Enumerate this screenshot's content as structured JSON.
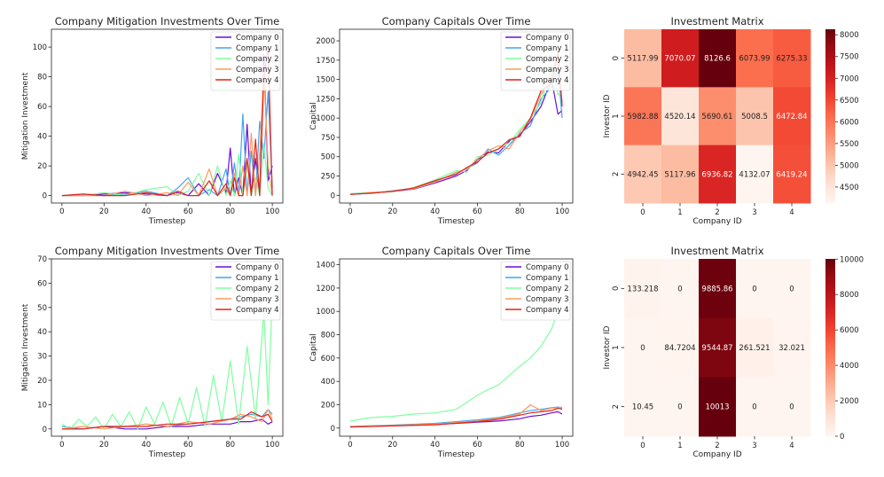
{
  "chart_data": [
    {
      "type": "line",
      "title": "Company Mitigation Investments Over Time",
      "xlabel": "Timestep",
      "ylabel": "Mitigation Investment",
      "xlim": [
        -5,
        105
      ],
      "ylim": [
        -5,
        112
      ],
      "xticks": [
        0,
        20,
        40,
        60,
        80,
        100
      ],
      "yticks": [
        0,
        20,
        40,
        60,
        80,
        100
      ],
      "legend_position": "top-right",
      "kind": "spiky",
      "series": [
        {
          "name": "Company 0",
          "color": "#6a0fd8",
          "x": [
            0,
            10,
            20,
            30,
            40,
            50,
            55,
            60,
            65,
            70,
            74,
            78,
            80,
            82,
            84,
            86,
            88,
            90,
            92,
            94,
            96,
            98,
            100
          ],
          "y": [
            0,
            0,
            1,
            2,
            1,
            0,
            2,
            0,
            8,
            0,
            15,
            2,
            32,
            0,
            12,
            0,
            48,
            0,
            25,
            0,
            95,
            10,
            20
          ]
        },
        {
          "name": "Company 1",
          "color": "#3fa7f0",
          "x": [
            0,
            10,
            20,
            30,
            40,
            50,
            55,
            60,
            65,
            70,
            74,
            78,
            80,
            82,
            84,
            86,
            88,
            90,
            92,
            94,
            96,
            98,
            100
          ],
          "y": [
            0,
            1,
            0,
            1,
            3,
            0,
            5,
            12,
            0,
            4,
            0,
            18,
            0,
            22,
            0,
            55,
            0,
            30,
            0,
            50,
            25,
            70,
            5
          ]
        },
        {
          "name": "Company 2",
          "color": "#7fffa0",
          "x": [
            0,
            10,
            20,
            30,
            40,
            50,
            55,
            60,
            65,
            70,
            74,
            78,
            80,
            82,
            84,
            86,
            88,
            90,
            92,
            94,
            96,
            98,
            100
          ],
          "y": [
            0,
            0,
            2,
            0,
            4,
            6,
            0,
            3,
            15,
            0,
            20,
            0,
            10,
            0,
            28,
            0,
            20,
            0,
            12,
            0,
            35,
            5,
            0
          ]
        },
        {
          "name": "Company 3",
          "color": "#ff9a5a",
          "x": [
            0,
            10,
            20,
            30,
            40,
            50,
            55,
            60,
            65,
            70,
            74,
            78,
            80,
            82,
            84,
            86,
            88,
            90,
            92,
            94,
            96,
            98,
            100
          ],
          "y": [
            0,
            0,
            0,
            3,
            0,
            2,
            0,
            9,
            0,
            18,
            0,
            5,
            0,
            15,
            0,
            20,
            0,
            42,
            0,
            28,
            85,
            20,
            0
          ]
        },
        {
          "name": "Company 4",
          "color": "#e3221c",
          "x": [
            0,
            10,
            20,
            30,
            40,
            50,
            55,
            60,
            65,
            70,
            74,
            78,
            80,
            82,
            84,
            86,
            88,
            90,
            92,
            94,
            96,
            98,
            100
          ],
          "y": [
            0,
            1,
            0,
            0,
            2,
            0,
            3,
            0,
            0,
            10,
            0,
            8,
            0,
            12,
            0,
            0,
            25,
            0,
            38,
            0,
            80,
            100,
            0
          ]
        }
      ]
    },
    {
      "type": "line",
      "title": "Company Capitals Over Time",
      "xlabel": "Timestep",
      "ylabel": "Capital",
      "xlim": [
        -5,
        105
      ],
      "ylim": [
        -100,
        2150
      ],
      "xticks": [
        0,
        20,
        40,
        60,
        80,
        100
      ],
      "yticks": [
        0,
        250,
        500,
        750,
        1000,
        1250,
        1500,
        1750,
        2000
      ],
      "legend_position": "top-right",
      "kind": "smooth",
      "series": [
        {
          "name": "Company 0",
          "color": "#6a0fd8",
          "x": [
            0,
            10,
            20,
            30,
            40,
            50,
            55,
            60,
            65,
            70,
            75,
            80,
            85,
            90,
            95,
            98,
            100
          ],
          "y": [
            10,
            30,
            50,
            80,
            160,
            250,
            320,
            460,
            560,
            550,
            700,
            780,
            950,
            1150,
            1500,
            1050,
            1100
          ]
        },
        {
          "name": "Company 1",
          "color": "#3fa7f0",
          "x": [
            0,
            10,
            20,
            30,
            40,
            50,
            55,
            60,
            65,
            70,
            75,
            80,
            85,
            90,
            95,
            98,
            100
          ],
          "y": [
            15,
            25,
            60,
            90,
            180,
            280,
            350,
            420,
            600,
            520,
            650,
            800,
            900,
            1250,
            1400,
            1650,
            1000
          ]
        },
        {
          "name": "Company 2",
          "color": "#7fffa0",
          "x": [
            0,
            10,
            20,
            30,
            40,
            50,
            55,
            60,
            65,
            70,
            75,
            80,
            85,
            90,
            95,
            98,
            100
          ],
          "y": [
            20,
            40,
            45,
            100,
            200,
            320,
            300,
            500,
            520,
            600,
            680,
            850,
            1000,
            1200,
            1700,
            1300,
            1350
          ]
        },
        {
          "name": "Company 3",
          "color": "#ff9a5a",
          "x": [
            0,
            10,
            20,
            30,
            40,
            50,
            55,
            60,
            65,
            70,
            75,
            80,
            85,
            90,
            95,
            98,
            100
          ],
          "y": [
            10,
            35,
            55,
            85,
            170,
            300,
            340,
            470,
            580,
            640,
            600,
            820,
            980,
            1300,
            1550,
            1750,
            1200
          ]
        },
        {
          "name": "Company 4",
          "color": "#e3221c",
          "x": [
            0,
            10,
            20,
            30,
            40,
            50,
            55,
            60,
            65,
            70,
            75,
            80,
            85,
            90,
            95,
            98,
            100
          ],
          "y": [
            12,
            28,
            50,
            95,
            190,
            270,
            360,
            430,
            550,
            600,
            720,
            760,
            1000,
            1350,
            1450,
            1850,
            1150
          ]
        }
      ]
    },
    {
      "type": "heatmap",
      "title": "Investment Matrix",
      "xlabel": "Company ID",
      "ylabel": "Investor ID",
      "x_categories": [
        "0",
        "1",
        "2",
        "3",
        "4"
      ],
      "y_categories": [
        "0",
        "1",
        "2"
      ],
      "values": [
        [
          5117.99,
          7070.07,
          8126.6,
          6073.99,
          6275.33
        ],
        [
          5982.88,
          4520.14,
          5690.61,
          5008.5,
          6472.84
        ],
        [
          4942.45,
          5117.96,
          6936.82,
          4132.07,
          6419.24
        ]
      ],
      "labels": [
        [
          "5117.99",
          "7070.07",
          "8126.6",
          "6073.99",
          "6275.33"
        ],
        [
          "5982.88",
          "4520.14",
          "5690.61",
          "5008.5",
          "6472.84"
        ],
        [
          "4942.45",
          "5117.96",
          "6936.82",
          "4132.07",
          "6419.24"
        ]
      ],
      "colorbar_range": [
        4132.07,
        8126.6
      ],
      "colorbar_ticks": [
        4500,
        5000,
        5500,
        6000,
        6500,
        7000,
        7500,
        8000
      ],
      "colormap": "Reds"
    },
    {
      "type": "line",
      "title": "Company Mitigation Investments Over Time",
      "xlabel": "Timestep",
      "ylabel": "Mitigation Investment",
      "xlim": [
        -5,
        105
      ],
      "ylim": [
        -3,
        70
      ],
      "xticks": [
        0,
        20,
        40,
        60,
        80,
        100
      ],
      "yticks": [
        0,
        10,
        20,
        30,
        40,
        50,
        60,
        70
      ],
      "legend_position": "top-right",
      "kind": "spiky",
      "series": [
        {
          "name": "Company 0",
          "color": "#6a0fd8",
          "x": [
            0,
            10,
            20,
            30,
            40,
            50,
            60,
            70,
            80,
            85,
            90,
            95,
            98,
            100
          ],
          "y": [
            0,
            0,
            1,
            0,
            0,
            1,
            1,
            2,
            2,
            3,
            3,
            4,
            2,
            3
          ]
        },
        {
          "name": "Company 1",
          "color": "#3fa7f0",
          "x": [
            0,
            10,
            20,
            30,
            40,
            50,
            60,
            70,
            80,
            85,
            90,
            95,
            98,
            100
          ],
          "y": [
            1,
            0,
            1,
            1,
            2,
            1,
            2,
            3,
            4,
            5,
            6,
            5,
            8,
            6
          ]
        },
        {
          "name": "Company 2",
          "color": "#7fffa0",
          "x": [
            0,
            4,
            8,
            12,
            16,
            20,
            24,
            28,
            32,
            36,
            40,
            44,
            48,
            52,
            56,
            60,
            64,
            68,
            72,
            76,
            80,
            84,
            88,
            92,
            96,
            98,
            100
          ],
          "y": [
            2,
            0,
            4,
            1,
            5,
            0,
            6,
            1,
            7,
            0,
            9,
            2,
            11,
            1,
            13,
            2,
            17,
            1,
            22,
            3,
            28,
            2,
            34,
            4,
            48,
            10,
            55
          ]
        },
        {
          "name": "Company 3",
          "color": "#ff9a5a",
          "x": [
            0,
            10,
            20,
            30,
            40,
            50,
            60,
            70,
            80,
            85,
            90,
            95,
            98,
            100
          ],
          "y": [
            0,
            1,
            0,
            1,
            2,
            1,
            3,
            2,
            4,
            6,
            5,
            3,
            8,
            4
          ]
        },
        {
          "name": "Company 4",
          "color": "#e3221c",
          "x": [
            0,
            10,
            20,
            30,
            40,
            50,
            60,
            70,
            80,
            85,
            90,
            95,
            98,
            100
          ],
          "y": [
            0,
            0,
            1,
            1,
            1,
            2,
            2,
            3,
            4,
            4,
            7,
            5,
            6,
            3
          ]
        }
      ]
    },
    {
      "type": "line",
      "title": "Company Capitals Over Time",
      "xlabel": "Timestep",
      "ylabel": "Capital",
      "xlim": [
        -5,
        105
      ],
      "ylim": [
        -70,
        1450
      ],
      "xticks": [
        0,
        20,
        40,
        60,
        80,
        100
      ],
      "yticks": [
        0,
        200,
        400,
        600,
        800,
        1000,
        1200,
        1400
      ],
      "legend_position": "top-right",
      "kind": "smooth",
      "series": [
        {
          "name": "Company 0",
          "color": "#6a0fd8",
          "x": [
            0,
            20,
            40,
            60,
            70,
            80,
            85,
            90,
            95,
            98,
            100
          ],
          "y": [
            10,
            20,
            30,
            50,
            60,
            80,
            100,
            110,
            130,
            140,
            120
          ]
        },
        {
          "name": "Company 1",
          "color": "#3fa7f0",
          "x": [
            0,
            20,
            40,
            60,
            70,
            80,
            85,
            90,
            95,
            98,
            100
          ],
          "y": [
            15,
            25,
            40,
            70,
            90,
            130,
            150,
            160,
            175,
            180,
            170
          ]
        },
        {
          "name": "Company 2",
          "color": "#7fffa0",
          "x": [
            0,
            10,
            20,
            30,
            40,
            50,
            60,
            65,
            70,
            75,
            80,
            85,
            90,
            95,
            98
          ],
          "y": [
            60,
            90,
            100,
            120,
            130,
            160,
            280,
            330,
            370,
            450,
            530,
            600,
            700,
            850,
            1000
          ]
        },
        {
          "name": "Company 3",
          "color": "#ff9a5a",
          "x": [
            0,
            20,
            40,
            60,
            70,
            80,
            85,
            90,
            95,
            98,
            100
          ],
          "y": [
            12,
            22,
            35,
            60,
            85,
            120,
            200,
            150,
            170,
            175,
            180
          ]
        },
        {
          "name": "Company 4",
          "color": "#e3221c",
          "x": [
            0,
            20,
            40,
            60,
            70,
            80,
            85,
            90,
            95,
            98,
            100
          ],
          "y": [
            8,
            18,
            28,
            55,
            75,
            110,
            130,
            140,
            150,
            170,
            160
          ]
        }
      ]
    },
    {
      "type": "heatmap",
      "title": "Investment Matrix",
      "xlabel": "Company ID",
      "ylabel": "Investor ID",
      "x_categories": [
        "0",
        "1",
        "2",
        "3",
        "4"
      ],
      "y_categories": [
        "0",
        "1",
        "2"
      ],
      "values": [
        [
          133.218,
          0,
          9885.86,
          0,
          0
        ],
        [
          0,
          84.7204,
          9544.87,
          261.521,
          32.021
        ],
        [
          10.45,
          0,
          10013,
          0,
          0
        ]
      ],
      "labels": [
        [
          "133.218",
          "0",
          "9885.86",
          "0",
          "0"
        ],
        [
          "0",
          "84.7204",
          "9544.87",
          "261.521",
          "32.021"
        ],
        [
          "10.45",
          "0",
          "10013",
          "0",
          "0"
        ]
      ],
      "colorbar_range": [
        0,
        10013
      ],
      "colorbar_ticks": [
        0,
        2000,
        4000,
        6000,
        8000,
        10000
      ],
      "colormap": "Reds"
    }
  ]
}
